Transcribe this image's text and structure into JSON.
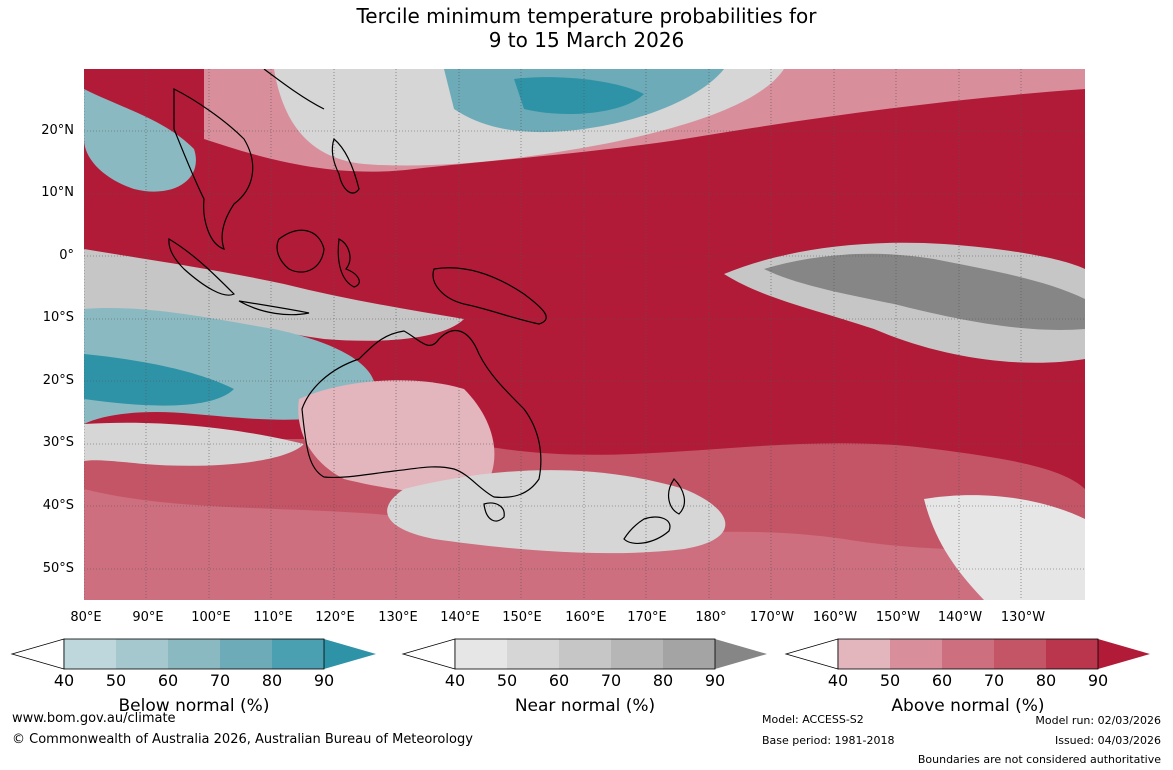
{
  "title": {
    "line1": "Tercile minimum temperature probabilities for",
    "line2": "9 to 15 March 2026"
  },
  "map": {
    "lat_labels": [
      "20°N",
      "10°N",
      "0°",
      "10°S",
      "20°S",
      "30°S",
      "40°S",
      "50°S"
    ],
    "lon_labels": [
      "80°E",
      "90°E",
      "100°E",
      "110°E",
      "120°E",
      "130°E",
      "140°E",
      "150°E",
      "160°E",
      "170°E",
      "180°",
      "170°W",
      "160°W",
      "150°W",
      "140°W",
      "130°W"
    ],
    "colors": {
      "above_90": "#b21b37",
      "near": "#d6d6d6",
      "below": "#5aa9b8",
      "land_outline": "#000000"
    }
  },
  "legend": {
    "ticks": [
      "40",
      "50",
      "60",
      "70",
      "80",
      "90"
    ],
    "below": {
      "label": "Below normal (%)",
      "colors": [
        "#bdd7dd",
        "#a4c8ce",
        "#8bb9c2",
        "#6eabb8",
        "#4a9fb0",
        "#2e93a6"
      ]
    },
    "near": {
      "label": "Near normal (%)",
      "colors": [
        "#e6e6e6",
        "#d6d6d6",
        "#c6c6c6",
        "#b6b6b6",
        "#a4a4a4",
        "#868686"
      ]
    },
    "above": {
      "label": "Above normal (%)",
      "colors": [
        "#e3b5bd",
        "#d88f9b",
        "#cd6f7e",
        "#c45566",
        "#ba364c",
        "#b21b37"
      ]
    }
  },
  "footer": {
    "website": "www.bom.gov.au/climate",
    "copyright": "© Commonwealth of Australia 2026, Australian Bureau of Meteorology",
    "model": "Model: ACCESS-S2",
    "base_period": "Base period: 1981-2018",
    "model_run": "Model run: 02/03/2026",
    "issued": "Issued: 04/03/2026",
    "boundaries": "Boundaries are not considered authoritative"
  }
}
